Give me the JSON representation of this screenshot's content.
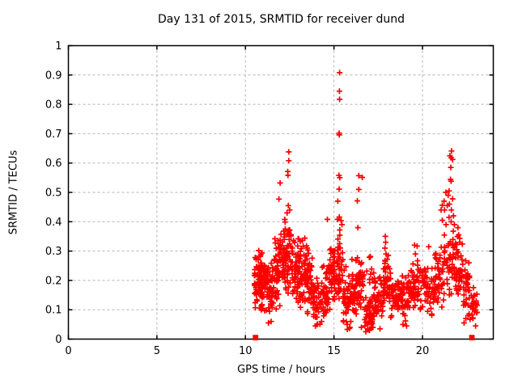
{
  "chart_data": {
    "type": "scatter",
    "title": "Day 131 of 2015, SRMTID for receiver dund",
    "xlabel": "GPS time / hours",
    "ylabel": "SRMTID / TECUs",
    "xlim": [
      0,
      24
    ],
    "ylim": [
      0,
      1
    ],
    "xticks": {
      "values": [
        0,
        5,
        10,
        15,
        20
      ],
      "labels": [
        "0",
        "5",
        "10",
        "15",
        "20"
      ]
    },
    "yticks": {
      "values": [
        0,
        0.1,
        0.2,
        0.3,
        0.4,
        0.5,
        0.6,
        0.7,
        0.8,
        0.9,
        1
      ],
      "labels": [
        "0",
        "0.1",
        "0.2",
        "0.3",
        "0.4",
        "0.5",
        "0.6",
        "0.7",
        "0.8",
        "0.9",
        "1"
      ]
    },
    "grid": true,
    "legend": "none",
    "background": "#ffffff",
    "axis_color": "#000000",
    "grid_color": "#b3b3b3",
    "marker": {
      "symbol": "plus",
      "color": "#ff0000",
      "size": 7
    },
    "notable_points": [
      [
        11.89,
        0.477
      ],
      [
        11.96,
        0.532
      ],
      [
        12.39,
        0.571
      ],
      [
        12.4,
        0.558
      ],
      [
        12.45,
        0.638
      ],
      [
        12.45,
        0.608
      ],
      [
        12.42,
        0.455
      ],
      [
        12.35,
        0.43
      ],
      [
        12.5,
        0.44
      ],
      [
        14.63,
        0.408
      ],
      [
        15.32,
        0.908
      ],
      [
        15.31,
        0.845
      ],
      [
        15.32,
        0.817
      ],
      [
        15.29,
        0.702
      ],
      [
        15.3,
        0.696
      ],
      [
        15.28,
        0.558
      ],
      [
        15.33,
        0.55
      ],
      [
        15.29,
        0.511
      ],
      [
        15.22,
        0.47
      ],
      [
        15.3,
        0.416
      ],
      [
        15.2,
        0.408
      ],
      [
        15.4,
        0.404
      ],
      [
        15.33,
        0.372
      ],
      [
        15.45,
        0.39
      ],
      [
        16.4,
        0.557
      ],
      [
        16.6,
        0.551
      ],
      [
        16.4,
        0.51
      ],
      [
        16.32,
        0.471
      ],
      [
        16.35,
        0.38
      ],
      [
        17.9,
        0.35
      ],
      [
        17.92,
        0.33
      ],
      [
        17.88,
        0.31
      ],
      [
        17.94,
        0.29
      ],
      [
        17.9,
        0.265
      ],
      [
        17.86,
        0.24
      ],
      [
        19.55,
        0.32
      ],
      [
        19.7,
        0.317
      ],
      [
        19.72,
        0.267
      ],
      [
        19.6,
        0.29
      ],
      [
        20.35,
        0.315
      ],
      [
        21.64,
        0.641
      ],
      [
        21.55,
        0.625
      ],
      [
        21.62,
        0.618
      ],
      [
        21.7,
        0.612
      ],
      [
        21.6,
        0.585
      ],
      [
        21.58,
        0.544
      ],
      [
        21.62,
        0.538
      ],
      [
        21.5,
        0.505
      ],
      [
        21.05,
        0.44
      ],
      [
        21.12,
        0.456
      ],
      [
        21.22,
        0.47
      ],
      [
        21.32,
        0.5
      ],
      [
        21.4,
        0.455
      ],
      [
        21.45,
        0.49
      ],
      [
        21.52,
        0.46
      ],
      [
        21.63,
        0.44
      ],
      [
        21.7,
        0.478
      ],
      [
        21.25,
        0.44
      ],
      [
        21.12,
        0.405
      ],
      [
        21.33,
        0.39
      ],
      [
        21.5,
        0.415
      ],
      [
        21.62,
        0.4
      ],
      [
        21.75,
        0.42
      ],
      [
        21.8,
        0.39
      ],
      [
        22.0,
        0.38
      ],
      [
        22.05,
        0.355
      ],
      [
        22.1,
        0.33
      ],
      [
        13.95,
        0.045
      ],
      [
        14.05,
        0.05
      ],
      [
        14.3,
        0.06
      ],
      [
        15.75,
        0.05
      ],
      [
        15.9,
        0.04
      ],
      [
        15.95,
        0.06
      ],
      [
        16.55,
        0.04
      ],
      [
        16.75,
        0.045
      ],
      [
        16.8,
        0.025
      ],
      [
        16.9,
        0.035
      ],
      [
        17.0,
        0.03
      ],
      [
        17.1,
        0.05
      ],
      [
        17.2,
        0.04
      ],
      [
        17.6,
        0.035
      ],
      [
        18.9,
        0.05
      ],
      [
        19.1,
        0.045
      ],
      [
        22.35,
        0.055
      ],
      [
        22.45,
        0.07
      ],
      [
        11.45,
        0.06
      ],
      [
        11.3,
        0.055
      ]
    ],
    "cluster_format": [
      "x_start",
      "x_end",
      "y_min",
      "y_max",
      "count"
    ],
    "density_clusters": [
      [
        10.5,
        10.85,
        0.1,
        0.32,
        55
      ],
      [
        10.85,
        11.2,
        0.07,
        0.3,
        55
      ],
      [
        11.2,
        11.6,
        0.06,
        0.28,
        48
      ],
      [
        11.6,
        11.95,
        0.09,
        0.39,
        48
      ],
      [
        11.95,
        12.3,
        0.12,
        0.43,
        46
      ],
      [
        12.3,
        12.65,
        0.14,
        0.45,
        42
      ],
      [
        12.65,
        13.05,
        0.11,
        0.36,
        46
      ],
      [
        13.05,
        13.45,
        0.1,
        0.37,
        46
      ],
      [
        13.45,
        13.8,
        0.06,
        0.33,
        42
      ],
      [
        13.8,
        14.3,
        0.04,
        0.22,
        48
      ],
      [
        14.3,
        14.7,
        0.06,
        0.26,
        42
      ],
      [
        14.7,
        15.1,
        0.1,
        0.35,
        46
      ],
      [
        15.1,
        15.5,
        0.12,
        0.37,
        42
      ],
      [
        15.5,
        15.95,
        0.03,
        0.25,
        42
      ],
      [
        15.95,
        16.3,
        0.05,
        0.28,
        38
      ],
      [
        16.3,
        16.7,
        0.08,
        0.3,
        36
      ],
      [
        16.7,
        17.25,
        0.02,
        0.16,
        46
      ],
      [
        16.85,
        17.25,
        0.16,
        0.3,
        10
      ],
      [
        17.25,
        17.8,
        0.04,
        0.22,
        46
      ],
      [
        17.8,
        18.2,
        0.07,
        0.3,
        42
      ],
      [
        18.2,
        18.7,
        0.05,
        0.24,
        44
      ],
      [
        18.7,
        19.2,
        0.05,
        0.22,
        42
      ],
      [
        19.2,
        19.7,
        0.08,
        0.26,
        42
      ],
      [
        19.7,
        20.2,
        0.08,
        0.28,
        40
      ],
      [
        20.2,
        20.7,
        0.07,
        0.26,
        34
      ],
      [
        20.7,
        21.2,
        0.1,
        0.33,
        40
      ],
      [
        21.2,
        21.8,
        0.12,
        0.4,
        42
      ],
      [
        21.8,
        22.3,
        0.1,
        0.36,
        42
      ],
      [
        22.3,
        22.75,
        0.05,
        0.3,
        38
      ],
      [
        22.75,
        23.1,
        0.04,
        0.2,
        26
      ]
    ],
    "endpoint_markers": {
      "symbol": "filled-square",
      "color": "#ff0000",
      "points": [
        [
          10.57,
          0.005
        ],
        [
          22.79,
          0.005
        ]
      ]
    }
  }
}
